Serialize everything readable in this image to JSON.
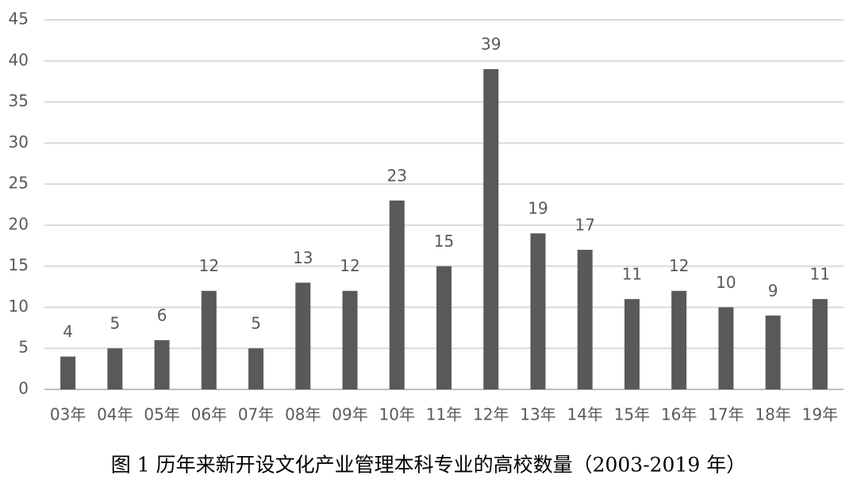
{
  "chart_data": {
    "type": "bar",
    "caption": "图 1  历年来新开设文化产业管理本科专业的高校数量（2003-2019 年）",
    "categories": [
      "03年",
      "04年",
      "05年",
      "06年",
      "07年",
      "08年",
      "09年",
      "10年",
      "11年",
      "12年",
      "13年",
      "14年",
      "15年",
      "16年",
      "17年",
      "18年",
      "19年"
    ],
    "values": [
      4,
      5,
      6,
      12,
      5,
      13,
      12,
      23,
      15,
      39,
      19,
      17,
      11,
      12,
      10,
      9,
      11
    ],
    "color": "#595959",
    "ylim": [
      0,
      45
    ],
    "yticks": [
      0,
      5,
      10,
      15,
      20,
      25,
      30,
      35,
      40,
      45
    ],
    "grid": true,
    "data_labels": true
  }
}
